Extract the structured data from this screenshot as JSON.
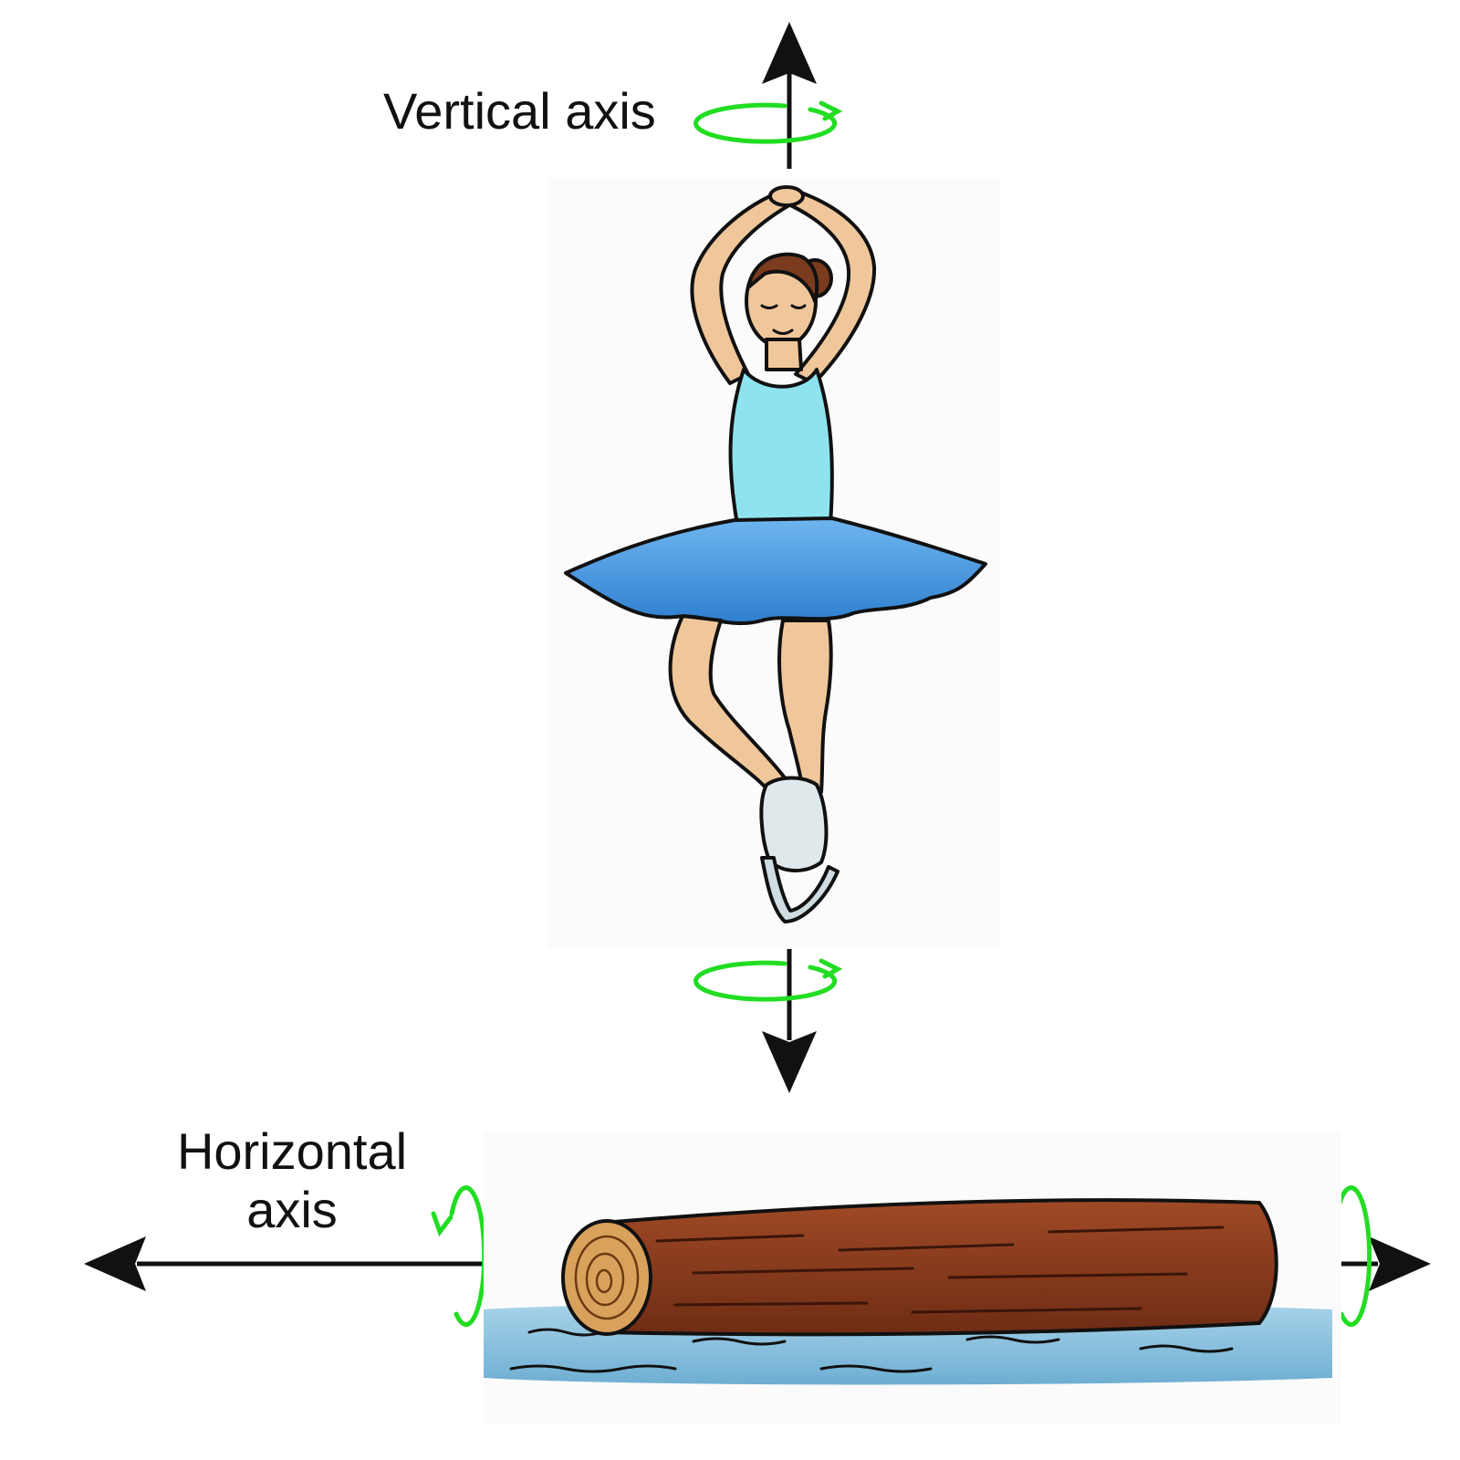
{
  "labels": {
    "vertical_axis": "Vertical axis",
    "horizontal_axis_line1": "Horizontal",
    "horizontal_axis_line2": "axis"
  },
  "icons": {
    "rotation": "circular-arrow-icon",
    "axis_arrow": "arrowhead-icon"
  },
  "colors": {
    "rotation_arrow": "#22dd22",
    "axis_line": "#111111",
    "leotard": "#8fe3ef",
    "skirt": "#4a9be0",
    "skin": "#f0c79a",
    "hair": "#7a3b1f",
    "skate": "#dfe9ec",
    "log": "#8a3a1e",
    "log_end": "#d9a25c",
    "water": "#8cc3df"
  }
}
